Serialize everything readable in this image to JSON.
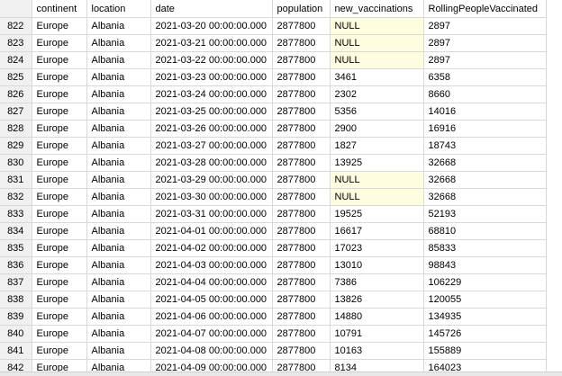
{
  "grid": {
    "columns": [
      "continent",
      "location",
      "date",
      "population",
      "new_vaccinations",
      "RollingPeopleVaccinated"
    ],
    "null_label": "NULL",
    "null_color": "#fffde0",
    "rows": [
      {
        "n": "822",
        "continent": "Europe",
        "location": "Albania",
        "date": "2021-03-20 00:00:00.000",
        "population": "2877800",
        "new_vaccinations": "NULL",
        "rolling": "2897"
      },
      {
        "n": "823",
        "continent": "Europe",
        "location": "Albania",
        "date": "2021-03-21 00:00:00.000",
        "population": "2877800",
        "new_vaccinations": "NULL",
        "rolling": "2897"
      },
      {
        "n": "824",
        "continent": "Europe",
        "location": "Albania",
        "date": "2021-03-22 00:00:00.000",
        "population": "2877800",
        "new_vaccinations": "NULL",
        "rolling": "2897"
      },
      {
        "n": "825",
        "continent": "Europe",
        "location": "Albania",
        "date": "2021-03-23 00:00:00.000",
        "population": "2877800",
        "new_vaccinations": "3461",
        "rolling": "6358"
      },
      {
        "n": "826",
        "continent": "Europe",
        "location": "Albania",
        "date": "2021-03-24 00:00:00.000",
        "population": "2877800",
        "new_vaccinations": "2302",
        "rolling": "8660"
      },
      {
        "n": "827",
        "continent": "Europe",
        "location": "Albania",
        "date": "2021-03-25 00:00:00.000",
        "population": "2877800",
        "new_vaccinations": "5356",
        "rolling": "14016"
      },
      {
        "n": "828",
        "continent": "Europe",
        "location": "Albania",
        "date": "2021-03-26 00:00:00.000",
        "population": "2877800",
        "new_vaccinations": "2900",
        "rolling": "16916"
      },
      {
        "n": "829",
        "continent": "Europe",
        "location": "Albania",
        "date": "2021-03-27 00:00:00.000",
        "population": "2877800",
        "new_vaccinations": "1827",
        "rolling": "18743"
      },
      {
        "n": "830",
        "continent": "Europe",
        "location": "Albania",
        "date": "2021-03-28 00:00:00.000",
        "population": "2877800",
        "new_vaccinations": "13925",
        "rolling": "32668"
      },
      {
        "n": "831",
        "continent": "Europe",
        "location": "Albania",
        "date": "2021-03-29 00:00:00.000",
        "population": "2877800",
        "new_vaccinations": "NULL",
        "rolling": "32668"
      },
      {
        "n": "832",
        "continent": "Europe",
        "location": "Albania",
        "date": "2021-03-30 00:00:00.000",
        "population": "2877800",
        "new_vaccinations": "NULL",
        "rolling": "32668"
      },
      {
        "n": "833",
        "continent": "Europe",
        "location": "Albania",
        "date": "2021-03-31 00:00:00.000",
        "population": "2877800",
        "new_vaccinations": "19525",
        "rolling": "52193"
      },
      {
        "n": "834",
        "continent": "Europe",
        "location": "Albania",
        "date": "2021-04-01 00:00:00.000",
        "population": "2877800",
        "new_vaccinations": "16617",
        "rolling": "68810"
      },
      {
        "n": "835",
        "continent": "Europe",
        "location": "Albania",
        "date": "2021-04-02 00:00:00.000",
        "population": "2877800",
        "new_vaccinations": "17023",
        "rolling": "85833"
      },
      {
        "n": "836",
        "continent": "Europe",
        "location": "Albania",
        "date": "2021-04-03 00:00:00.000",
        "population": "2877800",
        "new_vaccinations": "13010",
        "rolling": "98843"
      },
      {
        "n": "837",
        "continent": "Europe",
        "location": "Albania",
        "date": "2021-04-04 00:00:00.000",
        "population": "2877800",
        "new_vaccinations": "7386",
        "rolling": "106229"
      },
      {
        "n": "838",
        "continent": "Europe",
        "location": "Albania",
        "date": "2021-04-05 00:00:00.000",
        "population": "2877800",
        "new_vaccinations": "13826",
        "rolling": "120055"
      },
      {
        "n": "839",
        "continent": "Europe",
        "location": "Albania",
        "date": "2021-04-06 00:00:00.000",
        "population": "2877800",
        "new_vaccinations": "14880",
        "rolling": "134935"
      },
      {
        "n": "840",
        "continent": "Europe",
        "location": "Albania",
        "date": "2021-04-07 00:00:00.000",
        "population": "2877800",
        "new_vaccinations": "10791",
        "rolling": "145726"
      },
      {
        "n": "841",
        "continent": "Europe",
        "location": "Albania",
        "date": "2021-04-08 00:00:00.000",
        "population": "2877800",
        "new_vaccinations": "10163",
        "rolling": "155889"
      },
      {
        "n": "842",
        "continent": "Europe",
        "location": "Albania",
        "date": "2021-04-09 00:00:00.000",
        "population": "2877800",
        "new_vaccinations": "8134",
        "rolling": "164023"
      }
    ]
  }
}
